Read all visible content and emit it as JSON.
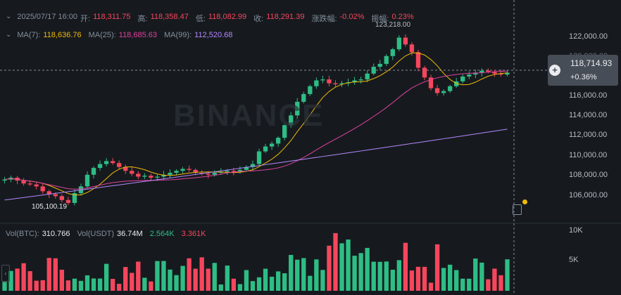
{
  "ohlc": {
    "date": "2025/07/17 16:00",
    "open_label": "开:",
    "open": "118,311.75",
    "high_label": "高:",
    "high": "118,358.47",
    "low_label": "低:",
    "low": "118,082.99",
    "close_label": "收:",
    "close": "118,291.39",
    "change_label": "涨跌幅:",
    "change": "-0.02%",
    "amp_label": "振幅:",
    "amp": "0.23%"
  },
  "ma": {
    "ma7_label": "MA(7):",
    "ma7": "118,636.76",
    "ma25_label": "MA(25):",
    "ma25": "118,685.63",
    "ma99_label": "MA(99):",
    "ma99": "112,520.68"
  },
  "volume": {
    "btc_label": "Vol(BTC):",
    "btc": "310.766",
    "usdt_label": "Vol(USDT)",
    "usdt": "36.74M",
    "buy": "2.564K",
    "sell": "3.361K"
  },
  "price_axis": [
    "122,000.00",
    "120,000.00",
    "116,000.00",
    "114,000.00",
    "112,000.00",
    "110,000.00",
    "108,000.00",
    "106,000.00"
  ],
  "volume_axis": [
    "10K",
    "5K"
  ],
  "current_price": "118,714.93",
  "current_change": "+0.36%",
  "high_marker": "123,218.00",
  "low_marker": "105,100.19",
  "watermark": "BINANCE",
  "colors": {
    "up": "#2ebd85",
    "down": "#f6465d",
    "ma7": "#f0b90b",
    "ma25": "#e040a0",
    "ma99": "#b388ff",
    "bg": "#161a1e"
  },
  "chart_data": {
    "type": "candlestick",
    "series": [
      "MA(7)",
      "MA(25)",
      "MA(99)"
    ],
    "y_range": [
      104500,
      124000
    ],
    "closes": [
      107700,
      107900,
      107600,
      107300,
      107200,
      107000,
      106500,
      106200,
      106000,
      105600,
      105300,
      106300,
      107000,
      108200,
      108900,
      109300,
      109600,
      109400,
      109000,
      108600,
      108300,
      108000,
      108100,
      107900,
      108000,
      108200,
      108400,
      108600,
      108800,
      108700,
      108400,
      108300,
      108200,
      108400,
      108500,
      108600,
      108500,
      108700,
      109000,
      109300,
      110600,
      111100,
      111400,
      112000,
      113300,
      114300,
      115700,
      116500,
      117300,
      117900,
      118000,
      117600,
      117500,
      117600,
      117700,
      117900,
      118000,
      118600,
      119300,
      119600,
      120400,
      121100,
      122300,
      121600,
      120800,
      119200,
      118200,
      117100,
      116600,
      116800,
      117300,
      117800,
      118300,
      118500,
      118700,
      118900,
      118800,
      118600,
      118500,
      118700
    ]
  }
}
